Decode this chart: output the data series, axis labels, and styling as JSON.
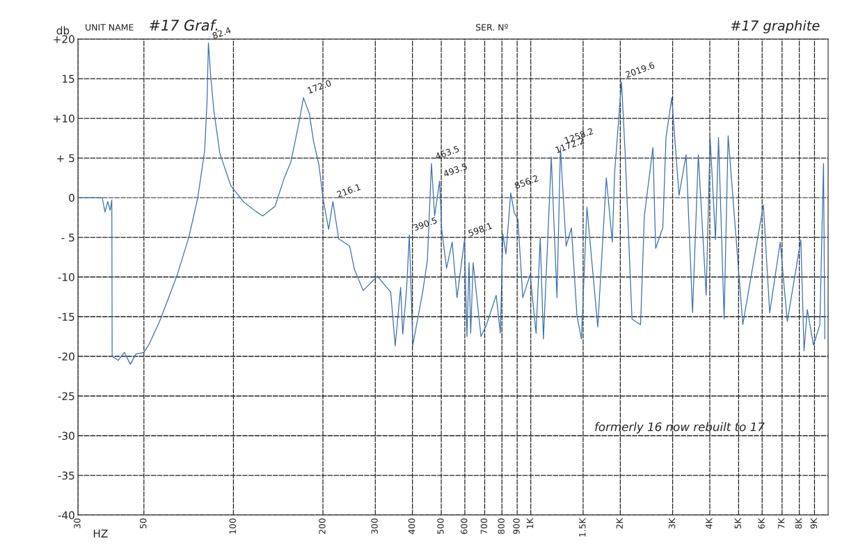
{
  "chart_data": {
    "type": "line",
    "ylabel": "db",
    "xlabel": "HZ",
    "annotations": [
      "UNIT NAME",
      "#17 Graf.",
      "SER. Nº",
      "#17 graphite",
      "formerly 16 now rebuilt to 17",
      {
        "text": "82.4",
        "x": 82.4,
        "y": 19.5
      },
      {
        "text": "172.0",
        "x": 172,
        "y": 12.6
      },
      {
        "text": "216.1",
        "x": 216.1,
        "y": -0.5
      },
      {
        "text": "390.5",
        "x": 390.5,
        "y": -4.7
      },
      {
        "text": "463.5",
        "x": 463.5,
        "y": 4.3
      },
      {
        "text": "493.5",
        "x": 493.5,
        "y": 2.1
      },
      {
        "text": "598.1",
        "x": 598.1,
        "y": -5.4
      },
      {
        "text": "856.2",
        "x": 856.2,
        "y": 0.6
      },
      {
        "text": "1172.2",
        "x": 1172.2,
        "y": 5.1
      },
      {
        "text": "1258.2",
        "x": 1258.2,
        "y": 6.3
      },
      {
        "text": "2019.6",
        "x": 2019.6,
        "y": 14.6
      }
    ],
    "log": "x",
    "xlim": [
      30,
      10000
    ],
    "ylim": [
      -40,
      20
    ],
    "xticks": [
      30,
      50,
      100,
      200,
      300,
      400,
      500,
      600,
      700,
      800,
      900,
      {
        "value": 1000,
        "label": "1K"
      },
      {
        "value": 1500,
        "label": "1.5K"
      },
      {
        "value": 2000,
        "label": "2K"
      },
      {
        "value": 3000,
        "label": "3K"
      },
      {
        "value": 4000,
        "label": "4K"
      },
      {
        "value": 5000,
        "label": "5K"
      },
      {
        "value": 6000,
        "label": "6K"
      },
      {
        "value": 7000,
        "label": "7K"
      },
      {
        "value": 8000,
        "label": "8K"
      },
      {
        "value": 9000,
        "label": "9K"
      }
    ],
    "yticks": [
      {
        "value": 20,
        "label": "+20"
      },
      15,
      {
        "value": 10,
        "label": "+10"
      },
      {
        "value": 5,
        "label": "+ 5"
      },
      0,
      {
        "value": -5,
        "label": "- 5"
      },
      -10,
      -15,
      -20,
      -25,
      -30,
      -35,
      -40
    ],
    "grid": true,
    "marker": "none",
    "line_style": "solid",
    "series": [
      {
        "color": "#3d6fb0",
        "x": [
          30,
          36.2,
          37,
          37.8,
          38.5,
          39,
          39.1,
          41,
          43,
          45,
          47,
          50,
          52,
          56.3,
          60,
          64.9,
          70.9,
          75.9,
          80,
          81.5,
          82.4,
          84,
          86,
          90,
          98,
          108,
          118.6,
          125.5,
          138,
          148,
          156,
          166,
          172,
          180,
          186,
          194,
          200,
          209,
          216.1,
          226,
          246,
          255,
          273,
          305,
          338,
          350,
          365,
          371,
          382,
          390.5,
          401,
          433,
          449,
          463.5,
          475,
          493.5,
          502,
          521,
          544,
          565,
          598.1,
          610,
          620,
          628,
          640,
          680,
          710,
          765,
          790,
          806,
          825,
          856.2,
          880,
          905,
          940,
          995,
          1042,
          1076,
          1103,
          1172.2,
          1225,
          1258.2,
          1315,
          1370,
          1430,
          1480,
          1545,
          1680,
          1795,
          1880,
          1915,
          2019.6,
          2078,
          2190,
          2340,
          2410,
          2575,
          2630,
          2780,
          2850,
          2980,
          3152,
          3330,
          3500,
          3660,
          3890,
          4010,
          4180,
          4280,
          4470,
          4610,
          5165,
          6058,
          6360,
          6900,
          7290,
          8095,
          8300,
          8510,
          8930,
          9380,
          9650,
          9750
        ],
        "values": [
          0,
          0,
          -1.8,
          -0.5,
          -1.6,
          -0.3,
          -20,
          -20.5,
          -19.5,
          -21,
          -19.7,
          -19.5,
          -18.5,
          -15.7,
          -13,
          -9.6,
          -4.9,
          0,
          5.9,
          12,
          19.5,
          15,
          10.9,
          5.6,
          1.5,
          -0.5,
          -1.7,
          -2.3,
          -1.1,
          2.4,
          4.5,
          9.4,
          12.6,
          10.6,
          7.1,
          4.1,
          0,
          -4,
          -0.5,
          -5.2,
          -6.1,
          -9,
          -11.7,
          -9.9,
          -11.9,
          -18.7,
          -11.3,
          -17.2,
          -11.7,
          -4.7,
          -18.6,
          -11.9,
          -7.9,
          4.3,
          -2.3,
          2.1,
          -4.1,
          -8.9,
          -5.6,
          -12.6,
          -5.4,
          -17.5,
          -8.2,
          -17.1,
          -8.2,
          -17.5,
          -16,
          -12.3,
          -17.1,
          -4.6,
          -7.1,
          0.6,
          -1.9,
          -2.7,
          -12.6,
          -9.7,
          -17.1,
          -5.1,
          -17.8,
          5.1,
          -12.6,
          6.3,
          -6.1,
          -3.8,
          -14.9,
          -17.8,
          -1.2,
          -16.3,
          2.5,
          -5.6,
          3.2,
          14.6,
          5.4,
          -15.3,
          -16,
          -2.3,
          6.3,
          -6.4,
          -3.8,
          7.6,
          12.6,
          0.3,
          5.4,
          -14.5,
          5.4,
          -12.3,
          7.6,
          -5.3,
          7.6,
          -15.3,
          7.8,
          -16,
          -0.9,
          -14.5,
          -5.6,
          -15.6,
          -5.3,
          -19.3,
          -14.1,
          -18.6,
          -16,
          4.3,
          -17.8
        ]
      }
    ]
  }
}
